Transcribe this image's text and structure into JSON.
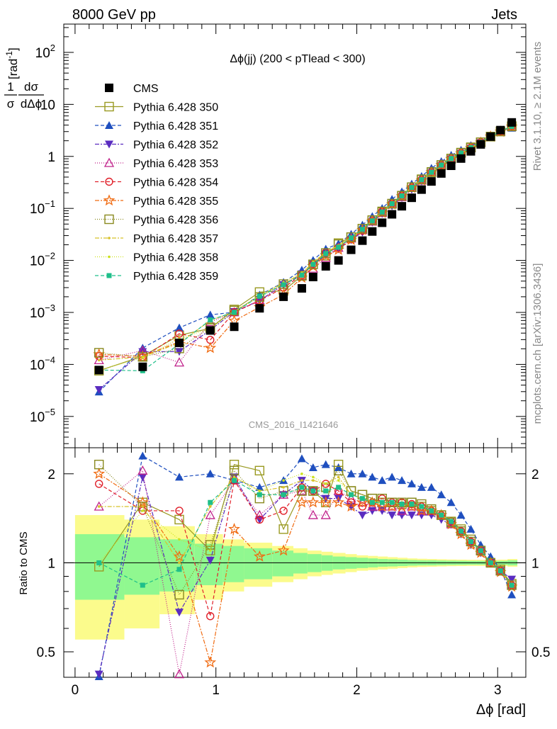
{
  "header": {
    "left_title": "8000 GeV pp",
    "right_title": "Jets",
    "side_rivet": "Rivet 3.1.10, ≥ 2.1M events",
    "side_mcplots": "mcplots.cern.ch [arXiv:1306.3436]",
    "watermark": "CMS_2016_I1421646"
  },
  "colors": {
    "cms": "#000000",
    "band_stat": "#90f890",
    "band_total": "#fbfb8c"
  },
  "chart_data": [
    {
      "type": "scatter",
      "panel": "main",
      "title": "Δϕ(jj) (200 < pTlead <  300)",
      "ylabel": "1/σ dσ/dΔϕ [rad⁻¹]",
      "ylabel_parts": {
        "frac_num": "1",
        "frac_den": "σ",
        "d_num": "dσ",
        "d_den": "dΔϕ",
        "unit": "[rad",
        "unit_sup": "-1",
        "unit_close": "]"
      },
      "yscale": "log",
      "ylim": [
        2.5e-06,
        350
      ],
      "xlim": [
        -0.08,
        3.2
      ],
      "y_ticks": [
        {
          "v": 100,
          "base": "10",
          "exp": "2"
        },
        {
          "v": 10,
          "base": "10",
          "exp": ""
        },
        {
          "v": 1,
          "base": "1",
          "exp": ""
        },
        {
          "v": 0.1,
          "base": "10",
          "exp": "−1"
        },
        {
          "v": 0.01,
          "base": "10",
          "exp": "−2"
        },
        {
          "v": 0.001,
          "base": "10",
          "exp": "−3"
        },
        {
          "v": 0.0001,
          "base": "10",
          "exp": "−4"
        },
        {
          "v": 1e-05,
          "base": "10",
          "exp": "−5"
        }
      ],
      "legend_position": "top-left",
      "x": [
        0.17,
        0.48,
        0.74,
        0.96,
        1.13,
        1.31,
        1.48,
        1.61,
        1.69,
        1.78,
        1.87,
        1.96,
        2.04,
        2.11,
        2.18,
        2.25,
        2.32,
        2.39,
        2.46,
        2.53,
        2.6,
        2.67,
        2.74,
        2.81,
        2.88,
        2.95,
        3.02,
        3.1
      ],
      "cms": [
        7.8e-05,
        9e-05,
        0.00026,
        0.00045,
        0.00053,
        0.0012,
        0.002,
        0.0029,
        0.0048,
        0.0077,
        0.01,
        0.016,
        0.024,
        0.036,
        0.053,
        0.077,
        0.11,
        0.16,
        0.23,
        0.33,
        0.47,
        0.66,
        0.91,
        1.25,
        1.7,
        2.4,
        3.2,
        4.5
      ]
    },
    {
      "type": "scatter",
      "panel": "ratio",
      "ylabel": "Ratio to CMS",
      "xlabel": "Δϕ [rad]",
      "yscale": "log",
      "ylim": [
        0.41,
        2.45
      ],
      "xlim": [
        -0.08,
        3.2
      ],
      "y_ticks": [
        {
          "v": 0.5,
          "label": "0.5"
        },
        {
          "v": 1,
          "label": "1"
        },
        {
          "v": 2,
          "label": "2"
        }
      ],
      "x_ticks": [
        {
          "v": 0,
          "label": "0"
        },
        {
          "v": 1,
          "label": "1"
        },
        {
          "v": 2,
          "label": "2"
        },
        {
          "v": 3,
          "label": "3"
        }
      ],
      "x": [
        0.17,
        0.48,
        0.74,
        0.96,
        1.13,
        1.31,
        1.48,
        1.61,
        1.69,
        1.78,
        1.87,
        1.96,
        2.04,
        2.11,
        2.18,
        2.25,
        2.32,
        2.39,
        2.46,
        2.53,
        2.6,
        2.67,
        2.74,
        2.81,
        2.88,
        2.95,
        3.02,
        3.1
      ],
      "band_edges": [
        0.0,
        0.35,
        0.6,
        0.85,
        1.05,
        1.2,
        1.4,
        1.55,
        1.65,
        1.75,
        1.83,
        1.92,
        2.0,
        2.08,
        2.15,
        2.22,
        2.29,
        2.36,
        2.43,
        2.5,
        2.57,
        2.64,
        2.71,
        2.78,
        2.85,
        2.92,
        3.0,
        3.07,
        3.14
      ],
      "band_stat": [
        0.25,
        0.22,
        0.2,
        0.16,
        0.14,
        0.12,
        0.1,
        0.08,
        0.07,
        0.06,
        0.05,
        0.045,
        0.04,
        0.035,
        0.03,
        0.028,
        0.025,
        0.022,
        0.02,
        0.02,
        0.018,
        0.017,
        0.016,
        0.015,
        0.015,
        0.015,
        0.015,
        0.02
      ],
      "band_total": [
        0.45,
        0.4,
        0.33,
        0.25,
        0.2,
        0.17,
        0.14,
        0.12,
        0.1,
        0.09,
        0.08,
        0.07,
        0.06,
        0.055,
        0.05,
        0.045,
        0.04,
        0.035,
        0.032,
        0.03,
        0.028,
        0.026,
        0.025,
        0.024,
        0.024,
        0.024,
        0.025,
        0.03
      ],
      "series": [
        {
          "name": "Pythia 6.428 350",
          "color": "#9a9a22",
          "dash": "",
          "marker": "open-square",
          "ratio": [
            0.97,
            1.6,
            1.4,
            1.1,
            2.15,
            2.05,
            1.3,
            1.75,
            1.75,
            1.6,
            2.15,
            1.75,
            1.7,
            1.65,
            1.6,
            1.6,
            1.58,
            1.6,
            1.55,
            1.5,
            1.45,
            1.38,
            1.3,
            1.2,
            1.1,
            1.0,
            0.95,
            0.85
          ]
        },
        {
          "name": "Pythia 6.428 351",
          "color": "#1f4fbf",
          "dash": "5,3",
          "marker": "filled-triangle-up",
          "ratio": [
            0.38,
            2.3,
            1.95,
            2.0,
            1.9,
            1.8,
            1.9,
            2.25,
            2.1,
            2.15,
            2.1,
            2.0,
            2.0,
            1.95,
            1.9,
            1.95,
            1.9,
            1.85,
            1.8,
            1.8,
            1.7,
            1.6,
            1.45,
            1.3,
            1.15,
            1.05,
            0.95,
            0.78
          ]
        },
        {
          "name": "Pythia 6.428 352",
          "color": "#5a2cc0",
          "dash": "6,2,2,2",
          "marker": "filled-triangle-down",
          "ratio": [
            0.42,
            1.95,
            0.68,
            1.02,
            1.95,
            1.4,
            1.7,
            1.9,
            1.75,
            1.65,
            1.65,
            1.55,
            1.45,
            1.5,
            1.5,
            1.45,
            1.45,
            1.45,
            1.45,
            1.45,
            1.4,
            1.35,
            1.25,
            1.15,
            1.08,
            1.0,
            0.94,
            0.88
          ]
        },
        {
          "name": "Pythia 6.428 353",
          "color": "#c0208a",
          "dash": "1,2",
          "marker": "open-triangle-up",
          "ratio": [
            1.55,
            2.05,
            0.42,
            1.45,
            1.9,
            1.45,
            1.7,
            1.75,
            1.45,
            1.45,
            1.75,
            1.65,
            1.6,
            1.55,
            1.55,
            1.55,
            1.5,
            1.55,
            1.5,
            1.5,
            1.45,
            1.35,
            1.28,
            1.18,
            1.1,
            1.0,
            0.94,
            0.84
          ]
        },
        {
          "name": "Pythia 6.428 354",
          "color": "#e0202a",
          "dash": "5,3",
          "marker": "open-circle",
          "ratio": [
            1.85,
            1.5,
            1.5,
            0.66,
            1.9,
            1.4,
            1.5,
            1.8,
            1.75,
            1.85,
            1.75,
            1.6,
            1.55,
            1.6,
            1.65,
            1.6,
            1.6,
            1.58,
            1.55,
            1.5,
            1.45,
            1.38,
            1.28,
            1.18,
            1.1,
            1.0,
            0.94,
            0.84
          ]
        },
        {
          "name": "Pythia 6.428 355",
          "color": "#f06a10",
          "dash": "6,2,2,2",
          "marker": "open-star",
          "ratio": [
            2.0,
            1.6,
            1.05,
            0.46,
            1.3,
            1.05,
            1.1,
            1.6,
            1.6,
            1.6,
            1.6,
            1.55,
            1.6,
            1.6,
            1.55,
            1.55,
            1.55,
            1.55,
            1.5,
            1.5,
            1.45,
            1.35,
            1.25,
            1.15,
            1.08,
            1.0,
            0.93,
            0.83
          ]
        },
        {
          "name": "Pythia 6.428 356",
          "color": "#8a8a20",
          "dash": "1,2",
          "marker": "open-square",
          "ratio": [
            2.15,
            1.55,
            0.78,
            1.15,
            2.05,
            1.65,
            1.75,
            1.75,
            1.75,
            1.8,
            2.05,
            1.75,
            1.7,
            1.65,
            1.65,
            1.6,
            1.6,
            1.6,
            1.58,
            1.52,
            1.45,
            1.37,
            1.28,
            1.18,
            1.1,
            1.0,
            0.94,
            0.84
          ]
        },
        {
          "name": "Pythia 6.428 357",
          "color": "#d8c22a",
          "dash": "6,2,2,2",
          "marker": "small-dot",
          "ratio": [
            1.55,
            1.55,
            1.0,
            1.55,
            1.95,
            1.75,
            1.8,
            1.9,
            1.9,
            1.85,
            1.95,
            1.7,
            1.65,
            1.6,
            1.6,
            1.6,
            1.58,
            1.58,
            1.55,
            1.5,
            1.45,
            1.38,
            1.28,
            1.18,
            1.1,
            1.0,
            0.94,
            0.84
          ]
        },
        {
          "name": "Pythia 6.428 358",
          "color": "#cde21f",
          "dash": "1,2",
          "marker": "small-dot",
          "ratio": [
            1.0,
            1.5,
            1.2,
            1.1,
            1.95,
            1.75,
            1.9,
            2.0,
            1.95,
            1.85,
            1.9,
            1.7,
            1.65,
            1.62,
            1.6,
            1.6,
            1.58,
            1.58,
            1.55,
            1.5,
            1.45,
            1.38,
            1.28,
            1.18,
            1.1,
            1.0,
            0.94,
            0.84
          ]
        },
        {
          "name": "Pythia 6.428 359",
          "color": "#1fbf8a",
          "dash": "5,3",
          "marker": "filled-square-small",
          "ratio": [
            1.0,
            0.84,
            0.95,
            1.6,
            1.9,
            1.7,
            1.7,
            1.8,
            1.75,
            1.75,
            1.8,
            1.7,
            1.65,
            1.6,
            1.6,
            1.6,
            1.58,
            1.58,
            1.55,
            1.5,
            1.45,
            1.38,
            1.28,
            1.18,
            1.1,
            1.0,
            0.94,
            0.84
          ]
        }
      ]
    }
  ],
  "legend": {
    "cms_label": "CMS"
  }
}
